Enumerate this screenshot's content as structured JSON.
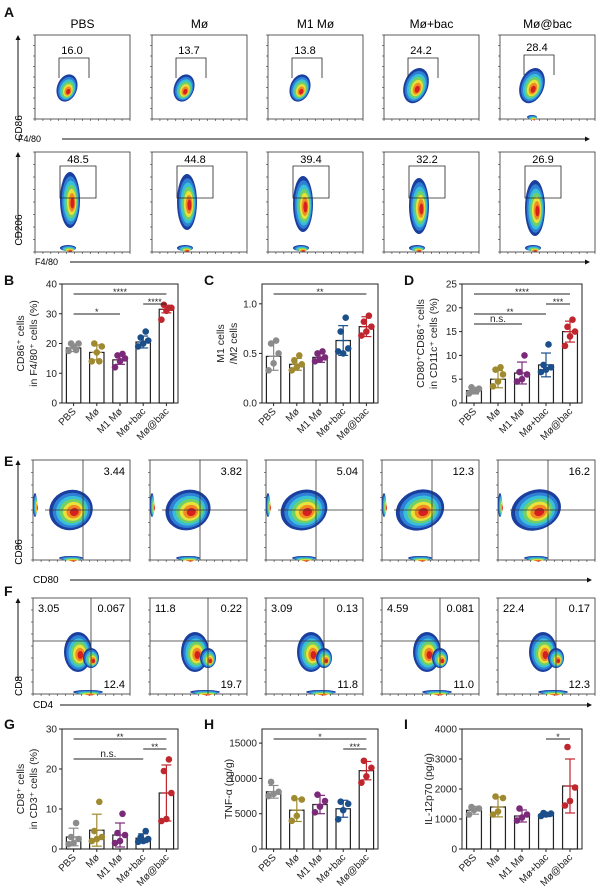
{
  "groups": [
    "PBS",
    "Mø",
    "M1 Mø",
    "Mø+bac",
    "Mø@bac"
  ],
  "group_colors": [
    "#8c8c8c",
    "#a08a30",
    "#7a2a78",
    "#1b4f8a",
    "#c0262e"
  ],
  "panel_letters": [
    "A",
    "B",
    "C",
    "D",
    "E",
    "F",
    "G",
    "H",
    "I"
  ],
  "flow_A": {
    "row1": {
      "y_label": "CD86",
      "x_label": "F4/80",
      "values": [
        "16.0",
        "13.7",
        "13.8",
        "24.2",
        "28.4"
      ]
    },
    "row2": {
      "y_label": "CD206",
      "x_label": "F4/80",
      "values": [
        "48.5",
        "44.8",
        "39.4",
        "32.2",
        "26.9"
      ]
    }
  },
  "flow_E": {
    "y_label": "CD86",
    "x_label": "CD80",
    "values": [
      "3.44",
      "3.82",
      "5.04",
      "12.3",
      "16.2"
    ]
  },
  "flow_F": {
    "y_label": "CD8",
    "x_label": "CD4",
    "upper_left": [
      "3.05",
      "11.8",
      "3.09",
      "4.59",
      "22.4"
    ],
    "upper_right": [
      "0.067",
      "0.22",
      "0.13",
      "0.081",
      "0.17"
    ],
    "lower_right": [
      "12.4",
      "19.7",
      "11.8",
      "11.0",
      "12.3"
    ]
  },
  "chart_data": [
    {
      "panel": "B",
      "type": "bar",
      "ylabel_line1": "CD86⁺ cells",
      "ylabel_line2": "in F4/80⁺ cells (%)",
      "categories": [
        "PBS",
        "Mø",
        "M1 Mø",
        "Mø+bac",
        "Mø@bac"
      ],
      "ylim": [
        0,
        40
      ],
      "yticks": [
        0,
        10,
        20,
        30,
        40
      ],
      "means": [
        18.5,
        17.0,
        14.5,
        20.5,
        31.5
      ],
      "sd": [
        1.2,
        2.5,
        1.5,
        2.0,
        1.2
      ],
      "points": [
        [
          17.5,
          19,
          20,
          20,
          17.8
        ],
        [
          14,
          17,
          19,
          20,
          14
        ],
        [
          12,
          14,
          15,
          16,
          16.5
        ],
        [
          19,
          20,
          21,
          22,
          24
        ],
        [
          28,
          31,
          32,
          33,
          32
        ]
      ],
      "significance": [
        {
          "from": 0,
          "to": 4,
          "label": "****",
          "level": 2
        },
        {
          "from": 3,
          "to": 4,
          "label": "****",
          "level": 1
        },
        {
          "from": 0,
          "to": 2,
          "label": "*",
          "level": 0
        }
      ]
    },
    {
      "panel": "C",
      "type": "bar",
      "ylabel_line1": "M1 cells",
      "ylabel_line2": "/M2 cells",
      "categories": [
        "PBS",
        "Mø",
        "M1 Mø",
        "Mø+bac",
        "Mø@bac"
      ],
      "ylim": [
        0,
        1.2
      ],
      "yticks": [
        0.0,
        0.5,
        1.0
      ],
      "ytick_labels": [
        "0.0",
        "0.5",
        "1.0"
      ],
      "means": [
        0.47,
        0.39,
        0.46,
        0.63,
        0.77
      ],
      "sd": [
        0.14,
        0.06,
        0.05,
        0.15,
        0.1
      ],
      "points": [
        [
          0.33,
          0.4,
          0.5,
          0.6,
          0.63
        ],
        [
          0.33,
          0.36,
          0.39,
          0.43,
          0.48
        ],
        [
          0.42,
          0.44,
          0.46,
          0.5,
          0.52
        ],
        [
          0.52,
          0.5,
          0.55,
          0.72,
          0.86
        ],
        [
          0.68,
          0.72,
          0.77,
          0.82,
          0.88
        ]
      ],
      "significance": [
        {
          "from": 0,
          "to": 4,
          "label": "**",
          "level": 2
        }
      ]
    },
    {
      "panel": "D",
      "type": "bar",
      "ylabel_line1": "CD80⁺CD86⁺ cells",
      "ylabel_line2": "in CD11c⁺ cells (%)",
      "categories": [
        "PBS",
        "Mø",
        "M1 Mø",
        "Mø+bac",
        "Mø@bac"
      ],
      "ylim": [
        0,
        25
      ],
      "yticks": [
        0,
        5,
        10,
        15,
        20,
        25
      ],
      "means": [
        2.6,
        5.0,
        6.3,
        8.0,
        15.0
      ],
      "sd": [
        0.7,
        1.8,
        2.3,
        2.5,
        2.2
      ],
      "points": [
        [
          2,
          2.5,
          3,
          3.3,
          2.5
        ],
        [
          3.5,
          4.5,
          6,
          7,
          7.5
        ],
        [
          4.5,
          5,
          6,
          6.5,
          10
        ],
        [
          6.5,
          7,
          7.5,
          8,
          12.3
        ],
        [
          12,
          14,
          15,
          16,
          17.5
        ]
      ],
      "significance": [
        {
          "from": 0,
          "to": 4,
          "label": "****",
          "level": 3
        },
        {
          "from": 3,
          "to": 4,
          "label": "***",
          "level": 2
        },
        {
          "from": 0,
          "to": 3,
          "label": "**",
          "level": 1
        },
        {
          "from": 0,
          "to": 2,
          "label": "n.s.",
          "level": 0
        }
      ]
    },
    {
      "panel": "G",
      "type": "bar",
      "ylabel_line1": "CD8⁺ cells",
      "ylabel_line2": "in CD3⁺ cells (%)",
      "categories": [
        "PBS",
        "Mø",
        "M1 Mø",
        "Mø+bac",
        "Mø@bac"
      ],
      "ylim": [
        0,
        30
      ],
      "yticks": [
        0,
        10,
        20,
        30
      ],
      "means": [
        3.0,
        4.7,
        3.5,
        2.7,
        14.0
      ],
      "sd": [
        2.2,
        4.0,
        3.0,
        1.1,
        7.0
      ],
      "points": [
        [
          1.2,
          1.5,
          2.5,
          3,
          6.5
        ],
        [
          2,
          2.5,
          3,
          4.5,
          11.8
        ],
        [
          1.5,
          2,
          3.5,
          4,
          8.8
        ],
        [
          1.8,
          2,
          2.5,
          3,
          4.5
        ],
        [
          7,
          7.5,
          14,
          19.5,
          22.4
        ]
      ],
      "significance": [
        {
          "from": 0,
          "to": 4,
          "label": "**",
          "level": 2
        },
        {
          "from": 3,
          "to": 4,
          "label": "**",
          "level": 1
        },
        {
          "from": 0,
          "to": 3,
          "label": "n.s.",
          "level": 0
        }
      ]
    },
    {
      "panel": "H",
      "type": "bar",
      "ylabel_line1": "TNF-α (pg/g)",
      "ylabel_line2": "",
      "categories": [
        "PBS",
        "Mø",
        "M1 Mø",
        "Mø+bac",
        "Mø@bac"
      ],
      "ylim": [
        0,
        17000
      ],
      "yticks": [
        0,
        5000,
        10000,
        15000
      ],
      "means": [
        8100,
        5500,
        6300,
        5700,
        11100
      ],
      "sd": [
        900,
        1600,
        1300,
        1200,
        1300
      ],
      "points": [
        [
          7500,
          7800,
          8100,
          9500
        ],
        [
          4000,
          4700,
          7000,
          7200
        ],
        [
          5200,
          6000,
          6800,
          7700
        ],
        [
          4200,
          5500,
          6400,
          6700
        ],
        [
          9400,
          10300,
          11500,
          12500
        ]
      ],
      "significance": [
        {
          "from": 0,
          "to": 4,
          "label": "*",
          "level": 1
        },
        {
          "from": 3,
          "to": 4,
          "label": "***",
          "level": 0
        }
      ]
    },
    {
      "panel": "I",
      "type": "bar",
      "ylabel_line1": "IL-12p70 (pg/g)",
      "ylabel_line2": "",
      "categories": [
        "PBS",
        "Mø",
        "M1 Mø",
        "Mø+bac",
        "Mø@bac"
      ],
      "ylim": [
        0,
        4000
      ],
      "yticks": [
        0,
        1000,
        2000,
        3000,
        4000
      ],
      "means": [
        1290,
        1400,
        1100,
        1140,
        2100
      ],
      "sd": [
        130,
        330,
        200,
        60,
        900
      ],
      "points": [
        [
          1150,
          1300,
          1350,
          1400
        ],
        [
          1150,
          1250,
          1700,
          1750
        ],
        [
          950,
          1050,
          1150,
          1350
        ],
        [
          1100,
          1150,
          1180,
          1200
        ],
        [
          1450,
          1600,
          2050,
          3400
        ]
      ],
      "significance": [
        {
          "from": 3,
          "to": 4,
          "label": "*",
          "level": 0
        }
      ]
    }
  ]
}
